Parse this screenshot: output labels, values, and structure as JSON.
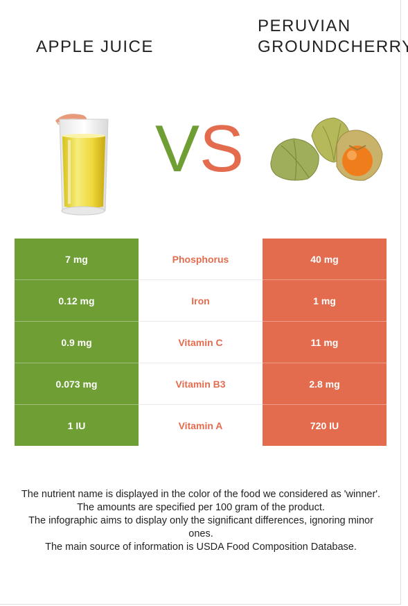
{
  "foods": {
    "left": {
      "name": "Apple juice",
      "color": "#6f9e35"
    },
    "right": {
      "name": "Peruvian groundcherry",
      "color": "#e36c4e"
    }
  },
  "vs": {
    "v": "V",
    "s": "S"
  },
  "rows": [
    {
      "nutrient": "Phosphorus",
      "left": "7 mg",
      "right": "40 mg"
    },
    {
      "nutrient": "Iron",
      "left": "0.12 mg",
      "right": "1 mg"
    },
    {
      "nutrient": "Vitamin C",
      "left": "0.9 mg",
      "right": "11 mg"
    },
    {
      "nutrient": "Vitamin B3",
      "left": "0.073 mg",
      "right": "2.8 mg"
    },
    {
      "nutrient": "Vitamin A",
      "left": "1 IU",
      "right": "720 IU"
    }
  ],
  "footer": [
    "The nutrient name is displayed in the color of the food we considered as 'winner'.",
    "The amounts are specified per 100 gram of the product.",
    "The infographic aims to display only the significant differences, ignoring minor ones.",
    "The main source of information is USDA Food Composition Database."
  ]
}
